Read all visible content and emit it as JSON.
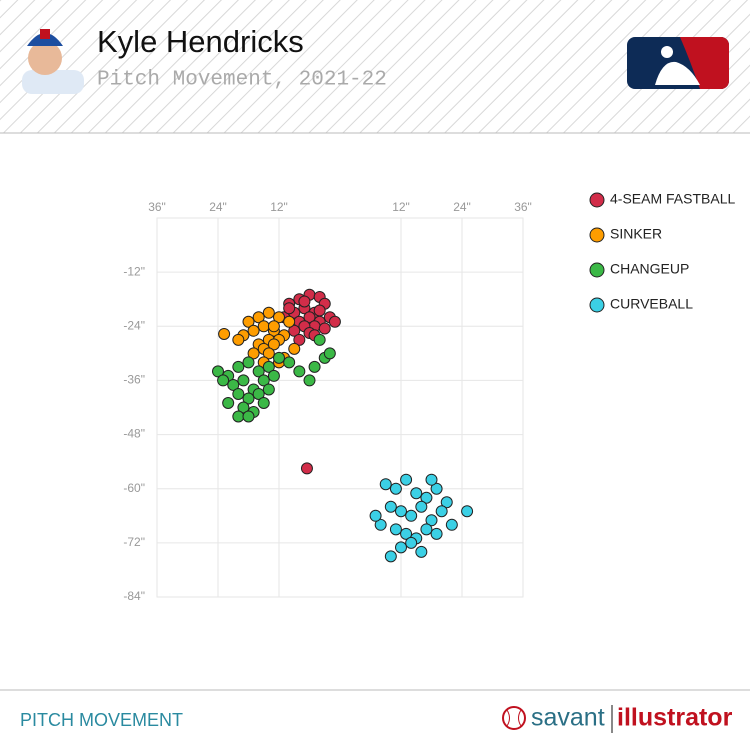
{
  "header": {
    "title": "Kyle Hendricks",
    "subtitle": "Pitch Movement, 2021-22"
  },
  "chart_data": {
    "type": "scatter",
    "xlim": [
      -36,
      36
    ],
    "ylim": [
      -84,
      0
    ],
    "xticks": [
      {
        "value": -36,
        "label": "36\""
      },
      {
        "value": -24,
        "label": "24\""
      },
      {
        "value": -12,
        "label": "12\""
      },
      {
        "value": 12,
        "label": "12\""
      },
      {
        "value": 24,
        "label": "24\""
      },
      {
        "value": 36,
        "label": "36\""
      }
    ],
    "yticks": [
      {
        "value": -12,
        "label": "-12\""
      },
      {
        "value": -24,
        "label": "-24\""
      },
      {
        "value": -36,
        "label": "-36\""
      },
      {
        "value": -48,
        "label": "-48\""
      },
      {
        "value": -60,
        "label": "-60\""
      },
      {
        "value": -72,
        "label": "-72\""
      },
      {
        "value": -84,
        "label": "-84\""
      }
    ],
    "grid": true,
    "series": [
      {
        "name": "4-SEAM FASTBALL",
        "color": "#d22d49",
        "x": [
          -6,
          -8,
          -4,
          -10,
          -3,
          -7,
          -5,
          -9,
          -2,
          -6,
          -11,
          -4,
          -8,
          -5,
          -7,
          -3,
          -9,
          -6,
          -1,
          -10,
          -5,
          -8,
          -4,
          -7,
          -6.5
        ],
        "values": [
          -17,
          -18,
          -17.5,
          -19,
          -19,
          -20,
          -21,
          -21,
          -22,
          -22,
          -22,
          -23,
          -23,
          -24,
          -24,
          -24.5,
          -25,
          -25.5,
          -23,
          -20,
          -26,
          -27,
          -20.5,
          -18.5,
          -55.5
        ]
      },
      {
        "name": "SINKER",
        "color": "#fe9d00",
        "x": [
          -14,
          -16,
          -12,
          -18,
          -10,
          -15,
          -13,
          -17,
          -11,
          -19,
          -14,
          -12,
          -16,
          -13,
          -15,
          -9,
          -17,
          -14,
          -11,
          -20,
          -12,
          -15,
          -13,
          -22.8
        ],
        "values": [
          -21,
          -22,
          -22,
          -23,
          -23,
          -24,
          -25,
          -25,
          -26,
          -26,
          -27,
          -27,
          -28,
          -28,
          -29,
          -29,
          -30,
          -30,
          -31,
          -27,
          -32,
          -32,
          -24,
          -25.7
        ]
      },
      {
        "name": "CHANGEUP",
        "color": "#3bb846",
        "x": [
          -24,
          -22,
          -20,
          -18,
          -16,
          -14,
          -12,
          -21,
          -19,
          -17,
          -15,
          -13,
          -23,
          -20,
          -18,
          -16,
          -14,
          -22,
          -19,
          -17,
          -15,
          -20,
          -18,
          -4,
          -3,
          -5,
          -2,
          -8,
          -10,
          -6
        ],
        "values": [
          -34,
          -35,
          -33,
          -32,
          -34,
          -33,
          -31,
          -37,
          -36,
          -38,
          -36,
          -35,
          -36,
          -39,
          -40,
          -39,
          -38,
          -41,
          -42,
          -43,
          -41,
          -44,
          -44,
          -27,
          -31,
          -33,
          -30,
          -34,
          -32,
          -36
        ]
      },
      {
        "name": "CURVEBALL",
        "color": "#3bd0e5",
        "x": [
          9,
          11,
          13,
          15,
          17,
          19,
          21,
          10,
          12,
          14,
          16,
          18,
          20,
          22,
          8,
          11,
          13,
          15,
          17,
          19,
          12,
          14,
          16,
          7,
          25,
          18,
          10
        ],
        "values": [
          -59,
          -60,
          -58,
          -61,
          -62,
          -60,
          -63,
          -64,
          -65,
          -66,
          -64,
          -67,
          -65,
          -68,
          -68,
          -69,
          -70,
          -71,
          -69,
          -70,
          -73,
          -72,
          -74,
          -66,
          -65,
          -58,
          -75
        ]
      }
    ]
  },
  "footer": {
    "label": "PITCH MOVEMENT",
    "brand_savant": "savant",
    "brand_illustrator": "illustrator"
  }
}
